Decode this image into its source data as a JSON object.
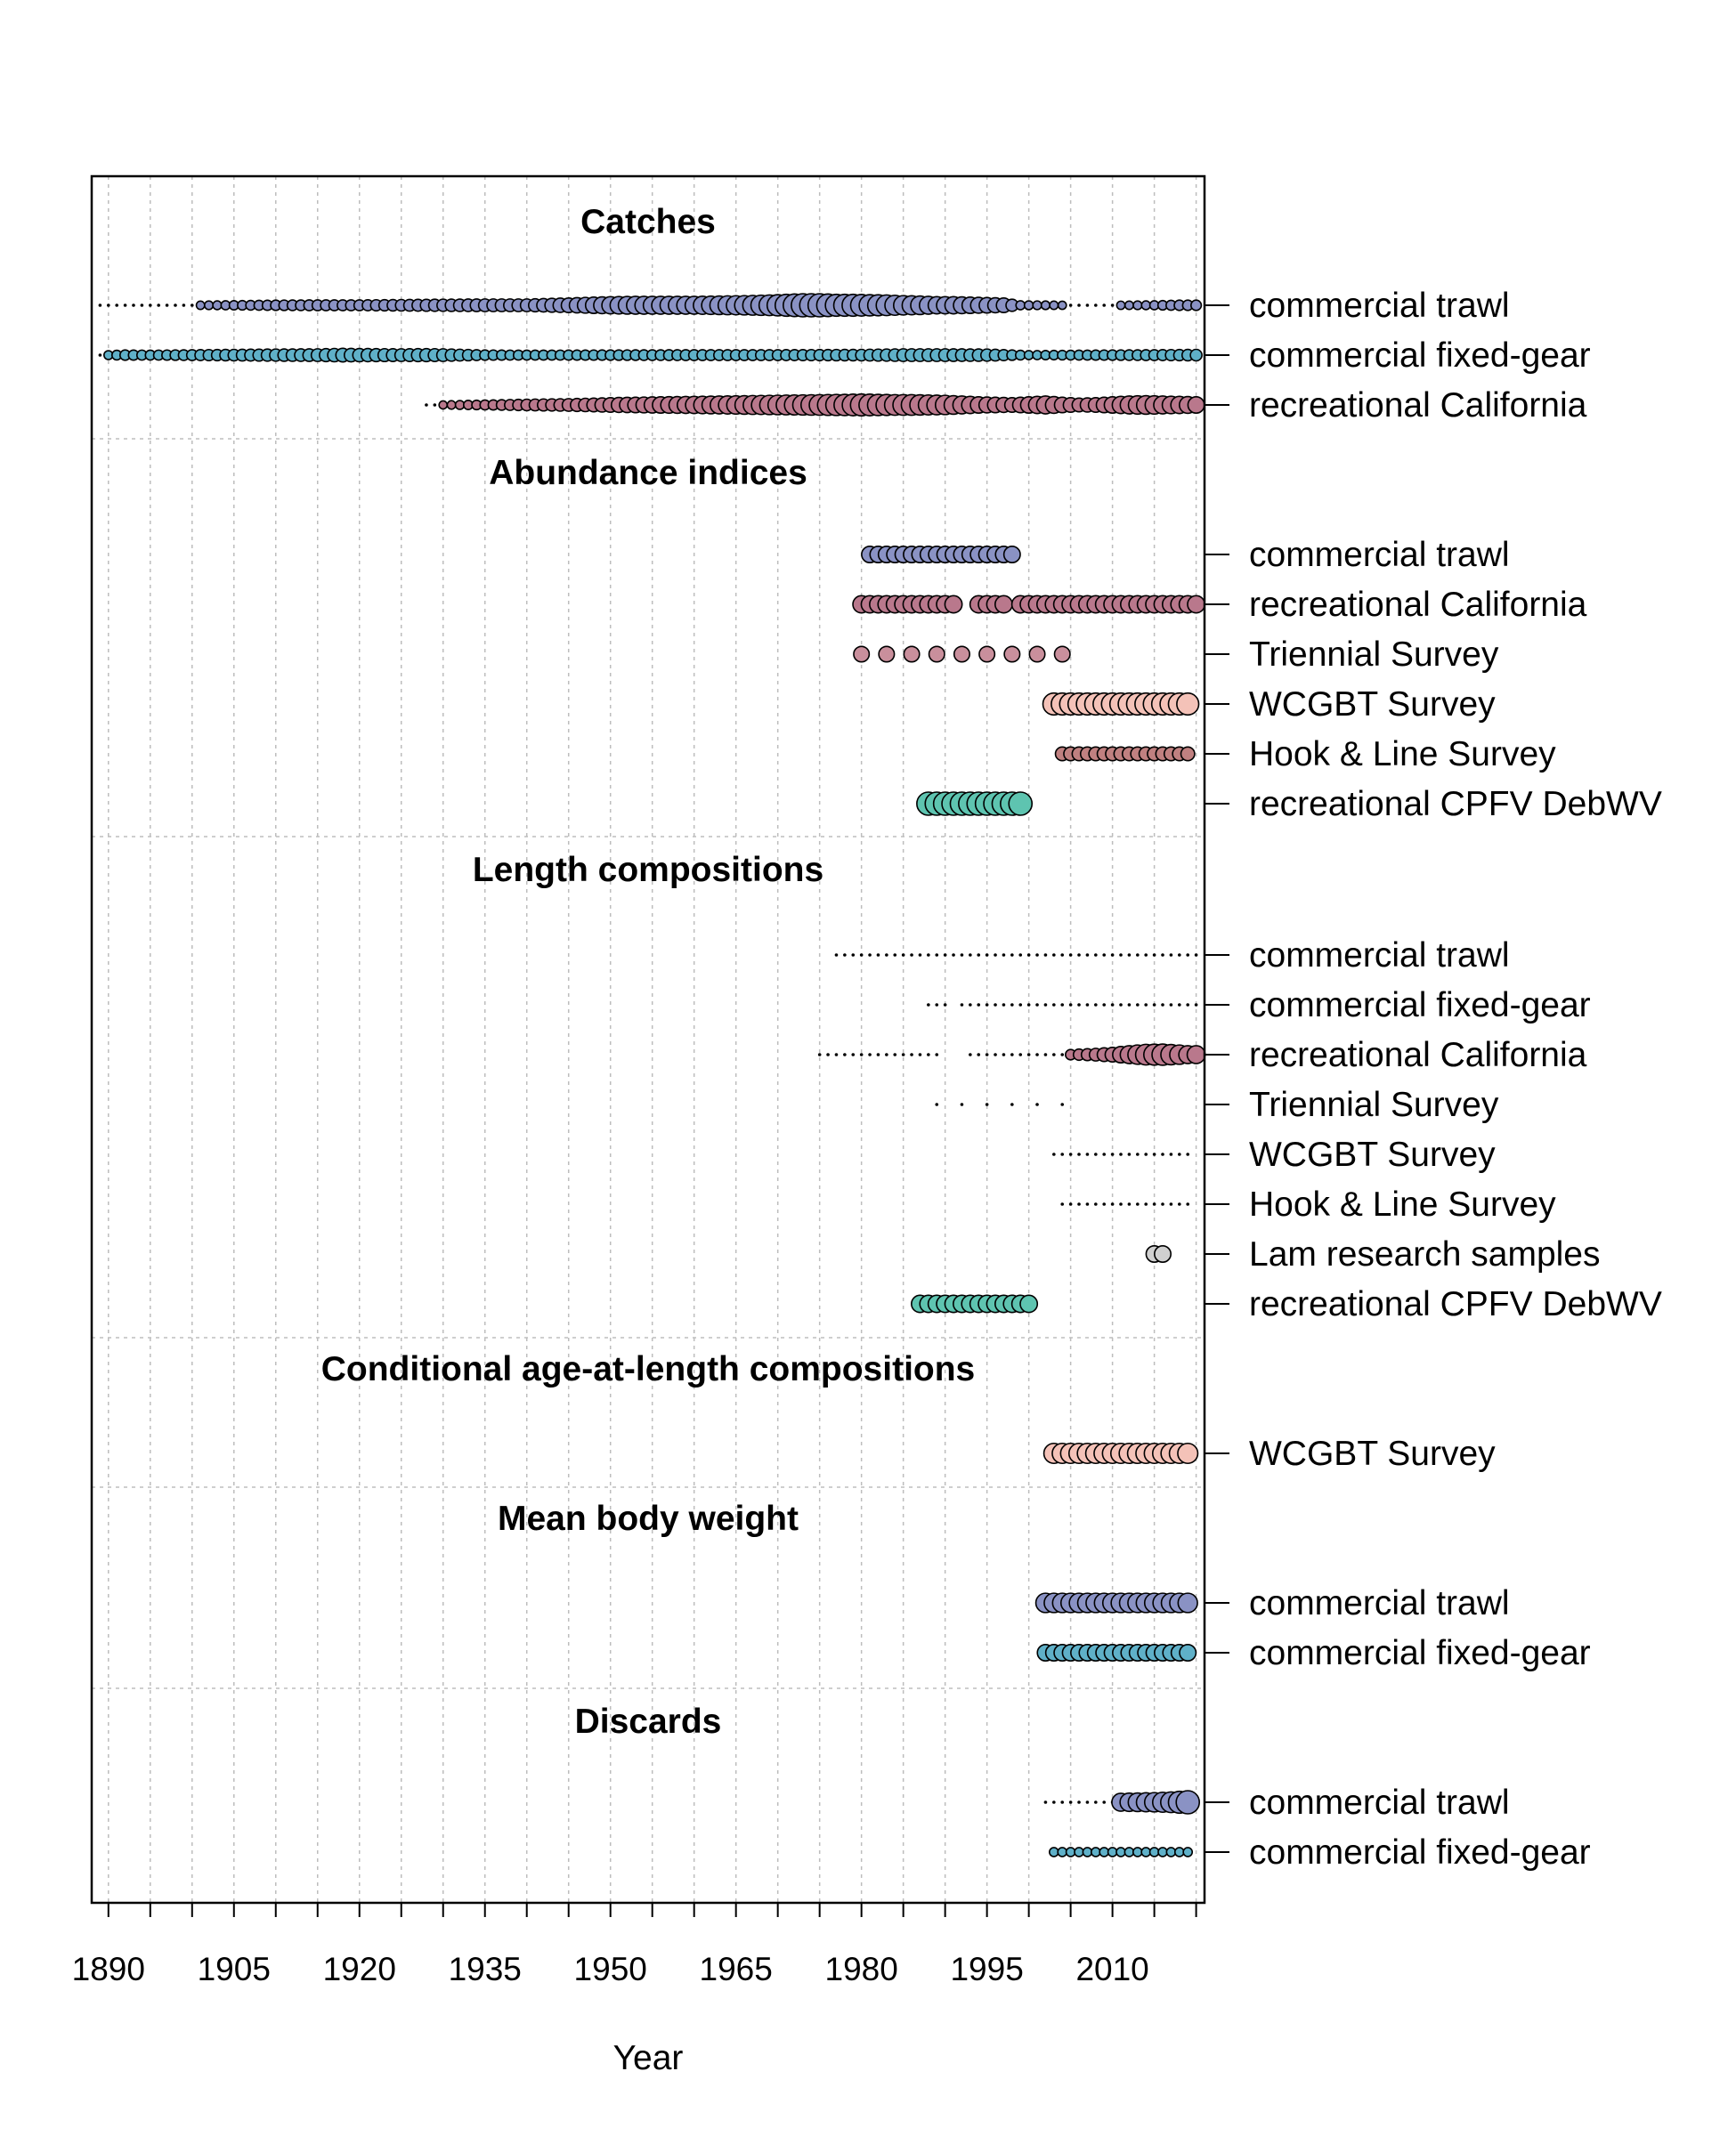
{
  "chart_data": {
    "type": "bubble-timeline",
    "xlabel": "Year",
    "xlim": [
      1888,
      2021
    ],
    "xticks": [
      1890,
      1905,
      1920,
      1935,
      1950,
      1965,
      1980,
      1995,
      2010
    ],
    "grid": true,
    "colors": {
      "commercial_trawl": "#8a92c4",
      "commercial_fixed_gear": "#5fb0c8",
      "recreational_california": "#b9788c",
      "triennial_survey": "#c98f9c",
      "wcgbt_survey": "#f4c2b8",
      "hook_line_survey": "#c08080",
      "lam_research": "#d0d0d0",
      "recreational_cpfv": "#5ec4b0"
    },
    "sections": [
      {
        "title": "Catches",
        "rows": [
          {
            "label": "commercial trawl",
            "color": "#8a92c4",
            "years": [
              1889,
              2020
            ],
            "sizes": [
              [
                1889,
                0.1
              ],
              [
                1900,
                0.12
              ],
              [
                1910,
                0.2
              ],
              [
                1915,
                0.22
              ],
              [
                1920,
                0.22
              ],
              [
                1925,
                0.25
              ],
              [
                1930,
                0.28
              ],
              [
                1935,
                0.3
              ],
              [
                1940,
                0.3
              ],
              [
                1945,
                0.4
              ],
              [
                1948,
                0.5
              ],
              [
                1950,
                0.55
              ],
              [
                1953,
                0.6
              ],
              [
                1956,
                0.6
              ],
              [
                1960,
                0.6
              ],
              [
                1963,
                0.65
              ],
              [
                1966,
                0.7
              ],
              [
                1969,
                0.8
              ],
              [
                1971,
                0.9
              ],
              [
                1973,
                1.0
              ],
              [
                1975,
                1.0
              ],
              [
                1977,
                0.9
              ],
              [
                1979,
                0.9
              ],
              [
                1981,
                0.85
              ],
              [
                1983,
                0.8
              ],
              [
                1985,
                0.7
              ],
              [
                1987,
                0.65
              ],
              [
                1989,
                0.55
              ],
              [
                1991,
                0.55
              ],
              [
                1993,
                0.5
              ],
              [
                1995,
                0.45
              ],
              [
                1997,
                0.4
              ],
              [
                1999,
                0.15
              ],
              [
                2005,
                0.12
              ],
              [
                2010,
                0.12
              ],
              [
                2015,
                0.15
              ],
              [
                2018,
                0.2
              ],
              [
                2020,
                0.2
              ]
            ]
          },
          {
            "label": "commercial fixed-gear",
            "color": "#5fb0c8",
            "years": [
              1889,
              2020
            ],
            "sizes": [
              [
                1889,
                0.12
              ],
              [
                1892,
                0.2
              ],
              [
                1895,
                0.18
              ],
              [
                1900,
                0.22
              ],
              [
                1905,
                0.25
              ],
              [
                1910,
                0.28
              ],
              [
                1915,
                0.3
              ],
              [
                1918,
                0.35
              ],
              [
                1920,
                0.33
              ],
              [
                1925,
                0.3
              ],
              [
                1928,
                0.32
              ],
              [
                1930,
                0.3
              ],
              [
                1935,
                0.2
              ],
              [
                1940,
                0.18
              ],
              [
                1950,
                0.2
              ],
              [
                1960,
                0.22
              ],
              [
                1970,
                0.22
              ],
              [
                1980,
                0.25
              ],
              [
                1985,
                0.3
              ],
              [
                1990,
                0.3
              ],
              [
                1995,
                0.28
              ],
              [
                2000,
                0.15
              ],
              [
                2010,
                0.2
              ],
              [
                2015,
                0.22
              ],
              [
                2020,
                0.25
              ]
            ]
          },
          {
            "label": "recreational California",
            "color": "#b9788c",
            "years": [
              1928,
              2020
            ],
            "sizes": [
              [
                1928,
                0.1
              ],
              [
                1935,
                0.18
              ],
              [
                1940,
                0.25
              ],
              [
                1945,
                0.3
              ],
              [
                1948,
                0.35
              ],
              [
                1950,
                0.4
              ],
              [
                1953,
                0.45
              ],
              [
                1956,
                0.5
              ],
              [
                1960,
                0.55
              ],
              [
                1963,
                0.6
              ],
              [
                1966,
                0.65
              ],
              [
                1969,
                0.7
              ],
              [
                1972,
                0.75
              ],
              [
                1975,
                0.8
              ],
              [
                1978,
                0.85
              ],
              [
                1980,
                0.9
              ],
              [
                1982,
                0.85
              ],
              [
                1984,
                0.8
              ],
              [
                1986,
                0.8
              ],
              [
                1988,
                0.75
              ],
              [
                1990,
                0.7
              ],
              [
                1992,
                0.6
              ],
              [
                1994,
                0.5
              ],
              [
                1996,
                0.45
              ],
              [
                1998,
                0.4
              ],
              [
                2000,
                0.5
              ],
              [
                2002,
                0.6
              ],
              [
                2004,
                0.45
              ],
              [
                2006,
                0.35
              ],
              [
                2008,
                0.4
              ],
              [
                2010,
                0.5
              ],
              [
                2012,
                0.6
              ],
              [
                2014,
                0.65
              ],
              [
                2016,
                0.6
              ],
              [
                2018,
                0.55
              ],
              [
                2020,
                0.5
              ]
            ]
          }
        ]
      },
      {
        "title": "Abundance indices",
        "rows": [
          {
            "label": "commercial trawl",
            "color": "#8a92c4",
            "years": [
              1981,
              1998
            ],
            "uniform": 0.5
          },
          {
            "label": "recreational California",
            "color": "#b9788c",
            "years": [
              1980,
              2020
            ],
            "gaps": [
              [
                1991,
                1994
              ],
              [
                1997,
                1999
              ]
            ],
            "uniform": 0.55
          },
          {
            "label": "Triennial Survey",
            "color": "#c98f9c",
            "points": [
              1980,
              1983,
              1986,
              1989,
              1992,
              1995,
              1998,
              2001,
              2004
            ],
            "uniform": 0.45
          },
          {
            "label": "WCGBT Survey",
            "color": "#f4c2b8",
            "years": [
              2003,
              2019
            ],
            "uniform": 0.9
          },
          {
            "label": "Hook & Line Survey",
            "color": "#c08080",
            "years": [
              2004,
              2019
            ],
            "uniform": 0.35
          },
          {
            "label": "recreational CPFV DebWV",
            "color": "#5ec4b0",
            "years": [
              1988,
              1999
            ],
            "uniform": 1.0
          }
        ]
      },
      {
        "title": "Length compositions",
        "rows": [
          {
            "label": "commercial trawl",
            "color": "#8a92c4",
            "years": [
              1977,
              2020
            ],
            "gaps": [
              [
                1991,
                1992
              ]
            ],
            "uniform": 0.1
          },
          {
            "label": "commercial fixed-gear",
            "color": "#5fb0c8",
            "years": [
              1988,
              2020
            ],
            "gaps": [
              [
                1990,
                1992
              ]
            ],
            "uniform": 0.1
          },
          {
            "label": "recreational California",
            "color": "#b9788c",
            "years": [
              1975,
              2020
            ],
            "gaps": [
              [
                1989,
                1993
              ]
            ],
            "sizes": [
              [
                2005,
                0.2
              ],
              [
                2008,
                0.3
              ],
              [
                2010,
                0.4
              ],
              [
                2012,
                0.6
              ],
              [
                2014,
                0.8
              ],
              [
                2016,
                0.85
              ],
              [
                2018,
                0.7
              ],
              [
                2019,
                0.6
              ]
            ]
          },
          {
            "label": "Triennial Survey",
            "color": "#c98f9c",
            "points": [
              1989,
              1992,
              1995,
              1998,
              2001,
              2004
            ],
            "uniform": 0.08
          },
          {
            "label": "WCGBT Survey",
            "color": "#f4c2b8",
            "years": [
              2003,
              2019
            ],
            "uniform": 0.1
          },
          {
            "label": "Hook & Line Survey",
            "color": "#c08080",
            "years": [
              2004,
              2019
            ],
            "uniform": 0.1
          },
          {
            "label": "Lam research samples",
            "color": "#d0d0d0",
            "points": [
              2015,
              2016
            ],
            "uniform": 0.5
          },
          {
            "label": "recreational CPFV DebWV",
            "color": "#5ec4b0",
            "years": [
              1987,
              2000
            ],
            "uniform": 0.55
          }
        ]
      },
      {
        "title": "Conditional age-at-length compositions",
        "rows": [
          {
            "label": "WCGBT Survey",
            "color": "#f4c2b8",
            "years": [
              2003,
              2019
            ],
            "uniform": 0.75
          }
        ]
      },
      {
        "title": "Mean body weight",
        "rows": [
          {
            "label": "commercial trawl",
            "color": "#8a92c4",
            "years": [
              2002,
              2019
            ],
            "uniform": 0.7
          },
          {
            "label": "commercial fixed-gear",
            "color": "#5fb0c8",
            "years": [
              2002,
              2019
            ],
            "uniform": 0.5
          }
        ]
      },
      {
        "title": "Discards",
        "rows": [
          {
            "label": "commercial trawl",
            "color": "#8a92c4",
            "years": [
              2002,
              2019
            ],
            "sizes": [
              [
                2011,
                0.6
              ],
              [
                2013,
                0.65
              ],
              [
                2015,
                0.7
              ],
              [
                2017,
                0.8
              ],
              [
                2019,
                1.0
              ]
            ]
          },
          {
            "label": "commercial fixed-gear",
            "color": "#5fb0c8",
            "years": [
              2003,
              2019
            ],
            "uniform": 0.15
          }
        ]
      }
    ]
  }
}
